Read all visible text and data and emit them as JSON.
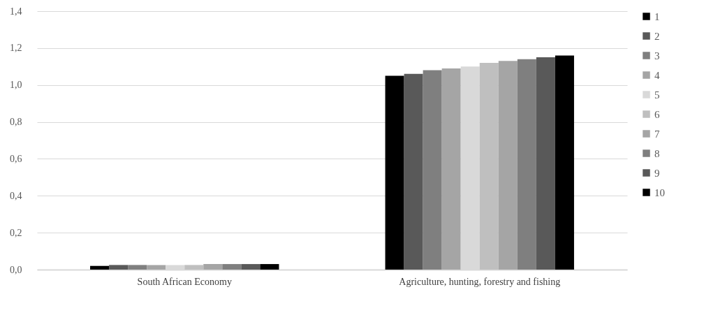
{
  "chart_data": {
    "type": "bar",
    "categories": [
      "South African Economy",
      "Agriculture, hunting, forestry and fishing"
    ],
    "series": [
      {
        "name": "1",
        "color": "#000000",
        "values": [
          0.02,
          1.05
        ]
      },
      {
        "name": "2",
        "color": "#595959",
        "values": [
          0.025,
          1.06
        ]
      },
      {
        "name": "3",
        "color": "#7f7f7f",
        "values": [
          0.025,
          1.08
        ]
      },
      {
        "name": "4",
        "color": "#a5a5a5",
        "values": [
          0.025,
          1.09
        ]
      },
      {
        "name": "5",
        "color": "#d9d9d9",
        "values": [
          0.025,
          1.1
        ]
      },
      {
        "name": "6",
        "color": "#bfbfbf",
        "values": [
          0.025,
          1.12
        ]
      },
      {
        "name": "7",
        "color": "#a5a5a5",
        "values": [
          0.03,
          1.13
        ]
      },
      {
        "name": "8",
        "color": "#7f7f7f",
        "values": [
          0.03,
          1.14
        ]
      },
      {
        "name": "9",
        "color": "#595959",
        "values": [
          0.03,
          1.15
        ]
      },
      {
        "name": "10",
        "color": "#000000",
        "values": [
          0.03,
          1.16
        ]
      }
    ],
    "ylim": [
      0,
      1.4
    ],
    "yticks": [
      {
        "value": 0,
        "label": "0,0"
      },
      {
        "value": 0.2,
        "label": "0,2"
      },
      {
        "value": 0.4,
        "label": "0,4"
      },
      {
        "value": 0.6,
        "label": "0,6"
      },
      {
        "value": 0.8,
        "label": "0,8"
      },
      {
        "value": 1.0,
        "label": "1,0"
      },
      {
        "value": 1.2,
        "label": "1,2"
      },
      {
        "value": 1.4,
        "label": "1,4"
      }
    ],
    "grid": "y",
    "legend": "right"
  }
}
